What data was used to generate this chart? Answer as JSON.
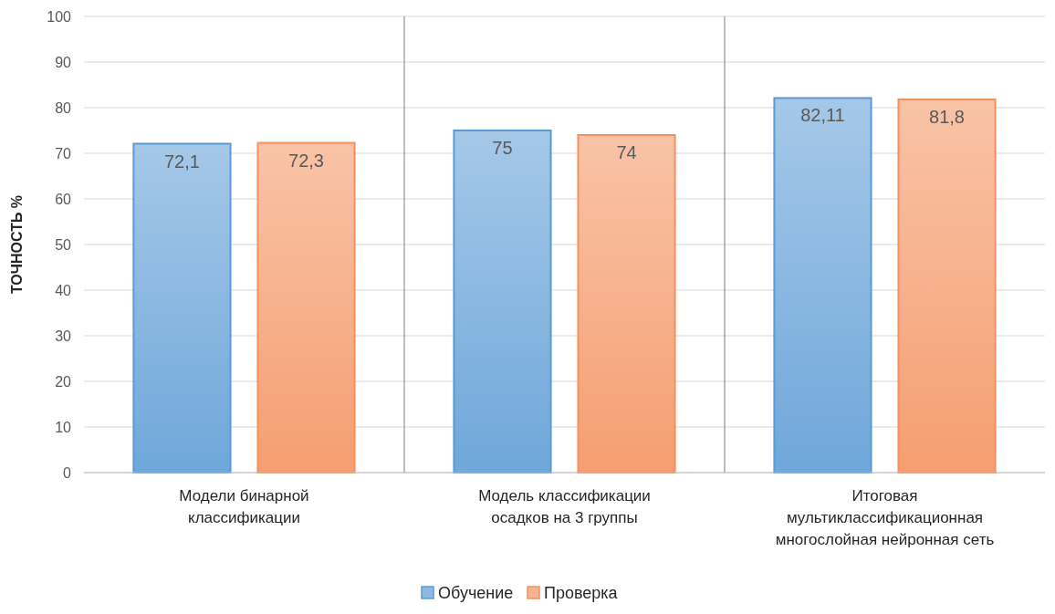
{
  "chart_data": {
    "type": "bar",
    "ylabel": "ТОЧНОСТЬ %",
    "categories": [
      "Модели бинарной классификации",
      "Модель классификации осадков на 3 группы",
      "Итоговая мультиклассификационная многослойная нейронная сеть"
    ],
    "series": [
      {
        "name": "Обучение",
        "color": "#5b9bd5",
        "values": [
          72.1,
          75,
          82.11
        ],
        "value_labels": [
          "72,1",
          "75",
          "82,11"
        ]
      },
      {
        "name": "Проверка",
        "color": "#f4915e",
        "values": [
          72.3,
          74,
          81.8
        ],
        "value_labels": [
          "72,3",
          "74",
          "81,8"
        ]
      }
    ],
    "ylim": [
      0,
      100
    ],
    "yticks": [
      0,
      10,
      20,
      30,
      40,
      50,
      60,
      70,
      80,
      90,
      100
    ],
    "grid": "y",
    "legend": "bottom"
  }
}
